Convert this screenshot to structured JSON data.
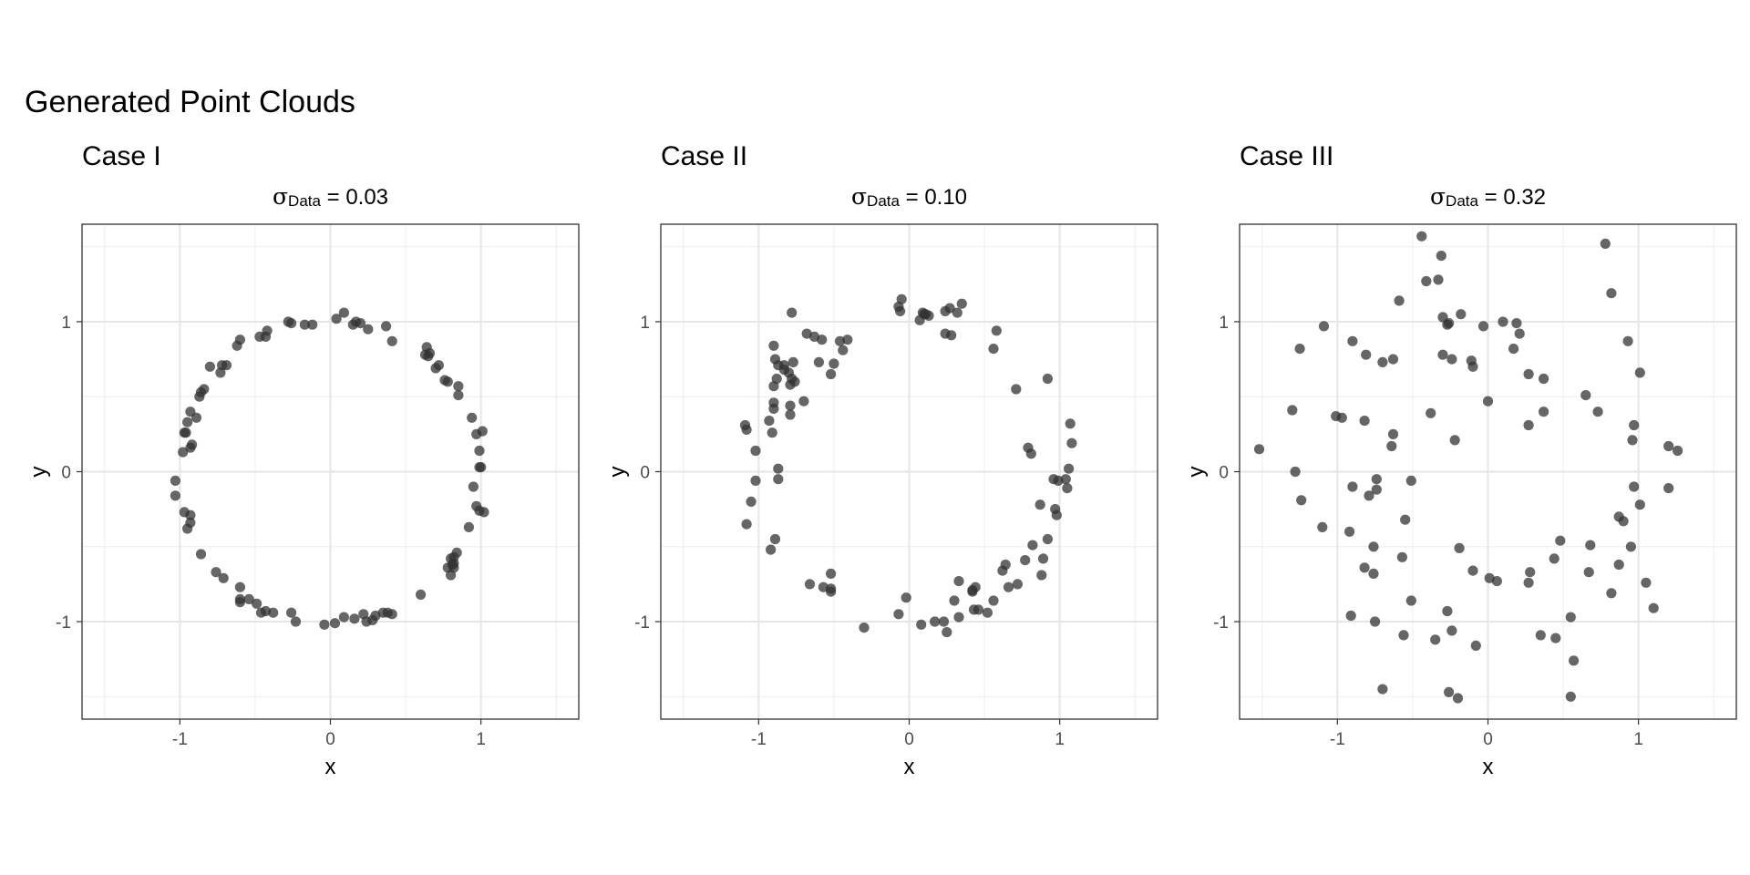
{
  "title": "Generated Point Clouds",
  "chart_data": [
    {
      "type": "scatter",
      "caption": "Case I",
      "subtitle_symbol": "σ",
      "subtitle_subscript": "Data",
      "subtitle_value": " = 0.03",
      "xlabel": "x",
      "ylabel": "y",
      "xlim": [
        -1.65,
        1.65
      ],
      "ylim": [
        -1.65,
        1.65
      ],
      "ticks": [
        -1,
        0,
        1
      ],
      "tick_labels": [
        "-1",
        "0",
        "1"
      ],
      "grid": true,
      "point_color": "#333333",
      "points": [
        [
          -0.28,
          1.0
        ],
        [
          -0.26,
          0.99
        ],
        [
          -0.17,
          0.98
        ],
        [
          -0.12,
          0.98
        ],
        [
          0.09,
          1.06
        ],
        [
          0.04,
          1.02
        ],
        [
          0.17,
          1.0
        ],
        [
          0.15,
          0.98
        ],
        [
          0.2,
          0.99
        ],
        [
          0.25,
          0.95
        ],
        [
          0.37,
          0.97
        ],
        [
          0.41,
          0.87
        ],
        [
          -0.42,
          0.94
        ],
        [
          -0.47,
          0.9
        ],
        [
          -0.43,
          0.9
        ],
        [
          -0.6,
          0.88
        ],
        [
          -0.62,
          0.84
        ],
        [
          -0.69,
          0.71
        ],
        [
          -0.72,
          0.71
        ],
        [
          -0.8,
          0.7
        ],
        [
          -0.73,
          0.66
        ],
        [
          -0.84,
          0.55
        ],
        [
          -0.87,
          0.5
        ],
        [
          -0.86,
          0.53
        ],
        [
          -0.89,
          0.36
        ],
        [
          -0.93,
          0.4
        ],
        [
          -0.95,
          0.33
        ],
        [
          -0.96,
          0.26
        ],
        [
          -0.97,
          0.26
        ],
        [
          -0.92,
          0.18
        ],
        [
          -0.93,
          0.16
        ],
        [
          -0.98,
          0.13
        ],
        [
          -1.03,
          -0.06
        ],
        [
          -1.03,
          -0.16
        ],
        [
          -0.97,
          -0.27
        ],
        [
          -0.93,
          -0.29
        ],
        [
          -0.95,
          -0.38
        ],
        [
          -0.93,
          -0.34
        ],
        [
          -0.86,
          -0.55
        ],
        [
          -0.76,
          -0.67
        ],
        [
          -0.71,
          -0.71
        ],
        [
          -0.6,
          -0.77
        ],
        [
          -0.6,
          -0.85
        ],
        [
          -0.6,
          -0.87
        ],
        [
          -0.54,
          -0.85
        ],
        [
          -0.49,
          -0.88
        ],
        [
          -0.46,
          -0.94
        ],
        [
          -0.43,
          -0.93
        ],
        [
          -0.38,
          -0.94
        ],
        [
          -0.26,
          -0.94
        ],
        [
          -0.23,
          -1.0
        ],
        [
          -0.04,
          -1.02
        ],
        [
          0.03,
          -1.01
        ],
        [
          0.09,
          -0.97
        ],
        [
          0.16,
          -0.98
        ],
        [
          0.22,
          -0.95
        ],
        [
          0.24,
          -1.0
        ],
        [
          0.28,
          -0.99
        ],
        [
          0.3,
          -0.96
        ],
        [
          0.35,
          -0.94
        ],
        [
          0.38,
          -0.94
        ],
        [
          0.41,
          -0.95
        ],
        [
          0.6,
          -0.82
        ],
        [
          0.78,
          -0.64
        ],
        [
          0.8,
          -0.69
        ],
        [
          0.8,
          -0.58
        ],
        [
          0.81,
          -0.62
        ],
        [
          0.82,
          -0.57
        ],
        [
          0.82,
          -0.61
        ],
        [
          0.84,
          -0.54
        ],
        [
          0.82,
          -0.64
        ],
        [
          0.92,
          -0.37
        ],
        [
          0.97,
          -0.23
        ],
        [
          0.99,
          -0.26
        ],
        [
          1.02,
          -0.27
        ],
        [
          0.95,
          -0.1
        ],
        [
          0.99,
          0.03
        ],
        [
          1.0,
          0.03
        ],
        [
          0.99,
          0.14
        ],
        [
          0.97,
          0.25
        ],
        [
          1.01,
          0.27
        ],
        [
          0.94,
          0.36
        ],
        [
          0.85,
          0.51
        ],
        [
          0.85,
          0.57
        ],
        [
          0.78,
          0.6
        ],
        [
          0.76,
          0.61
        ],
        [
          0.72,
          0.71
        ],
        [
          0.7,
          0.69
        ],
        [
          0.64,
          0.83
        ],
        [
          0.63,
          0.78
        ],
        [
          0.65,
          0.77
        ],
        [
          0.66,
          0.79
        ]
      ]
    },
    {
      "type": "scatter",
      "caption": "Case II",
      "subtitle_symbol": "σ",
      "subtitle_subscript": "Data",
      "subtitle_value": " = 0.10",
      "xlabel": "x",
      "ylabel": "y",
      "xlim": [
        -1.65,
        1.65
      ],
      "ylim": [
        -1.65,
        1.65
      ],
      "ticks": [
        -1,
        0,
        1
      ],
      "tick_labels": [
        "-1",
        "0",
        "1"
      ],
      "grid": true,
      "point_color": "#333333",
      "points": [
        [
          -0.07,
          1.1
        ],
        [
          -0.05,
          1.15
        ],
        [
          -0.06,
          1.07
        ],
        [
          0.09,
          1.06
        ],
        [
          0.1,
          1.05
        ],
        [
          0.11,
          1.05
        ],
        [
          0.07,
          1.01
        ],
        [
          0.13,
          1.04
        ],
        [
          0.24,
          1.07
        ],
        [
          0.27,
          1.09
        ],
        [
          0.32,
          1.06
        ],
        [
          0.35,
          1.12
        ],
        [
          0.24,
          0.92
        ],
        [
          0.28,
          0.91
        ],
        [
          0.56,
          0.82
        ],
        [
          0.58,
          0.94
        ],
        [
          -0.78,
          1.06
        ],
        [
          -0.68,
          0.92
        ],
        [
          -0.63,
          0.9
        ],
        [
          -0.58,
          0.88
        ],
        [
          -0.46,
          0.87
        ],
        [
          -0.41,
          0.88
        ],
        [
          -0.44,
          0.81
        ],
        [
          -0.5,
          0.72
        ],
        [
          -0.52,
          0.65
        ],
        [
          -0.6,
          0.73
        ],
        [
          -0.7,
          0.47
        ],
        [
          -0.76,
          0.6
        ],
        [
          -0.78,
          0.62
        ],
        [
          -0.79,
          0.58
        ],
        [
          -0.77,
          0.73
        ],
        [
          -0.8,
          0.66
        ],
        [
          -0.83,
          0.71
        ],
        [
          -0.83,
          0.68
        ],
        [
          -0.87,
          0.71
        ],
        [
          -0.89,
          0.75
        ],
        [
          -0.9,
          0.84
        ],
        [
          -0.88,
          0.62
        ],
        [
          -0.9,
          0.57
        ],
        [
          -0.9,
          0.46
        ],
        [
          -0.9,
          0.42
        ],
        [
          -0.93,
          0.34
        ],
        [
          -0.91,
          0.26
        ],
        [
          -1.02,
          0.14
        ],
        [
          -1.09,
          0.31
        ],
        [
          -1.08,
          0.28
        ],
        [
          -1.02,
          -0.06
        ],
        [
          -1.05,
          -0.2
        ],
        [
          -1.08,
          -0.35
        ],
        [
          -0.89,
          -0.45
        ],
        [
          -0.92,
          -0.52
        ],
        [
          -0.87,
          0.02
        ],
        [
          -0.87,
          -0.05
        ],
        [
          -0.79,
          0.44
        ],
        [
          -0.79,
          0.38
        ],
        [
          -0.66,
          -0.75
        ],
        [
          -0.57,
          -0.77
        ],
        [
          -0.52,
          -0.8
        ],
        [
          -0.52,
          -0.68
        ],
        [
          -0.52,
          -0.78
        ],
        [
          -0.3,
          -1.04
        ],
        [
          -0.07,
          -0.95
        ],
        [
          -0.02,
          -0.84
        ],
        [
          0.08,
          -1.02
        ],
        [
          0.17,
          -1.0
        ],
        [
          0.23,
          -1.0
        ],
        [
          0.25,
          -1.07
        ],
        [
          0.3,
          -0.86
        ],
        [
          0.33,
          -0.97
        ],
        [
          0.33,
          -0.73
        ],
        [
          0.42,
          -0.79
        ],
        [
          0.44,
          -0.77
        ],
        [
          0.42,
          -0.8
        ],
        [
          0.43,
          -0.92
        ],
        [
          0.46,
          -0.92
        ],
        [
          0.52,
          -0.94
        ],
        [
          0.56,
          -0.86
        ],
        [
          0.64,
          -0.62
        ],
        [
          0.66,
          -0.77
        ],
        [
          0.62,
          -0.66
        ],
        [
          0.72,
          -0.75
        ],
        [
          0.77,
          -0.59
        ],
        [
          0.82,
          -0.49
        ],
        [
          0.88,
          -0.69
        ],
        [
          0.89,
          -0.58
        ],
        [
          0.92,
          -0.45
        ],
        [
          0.87,
          -0.22
        ],
        [
          0.97,
          -0.25
        ],
        [
          0.98,
          -0.29
        ],
        [
          0.96,
          -0.05
        ],
        [
          0.99,
          -0.06
        ],
        [
          1.04,
          -0.05
        ],
        [
          1.05,
          -0.11
        ],
        [
          1.06,
          0.02
        ],
        [
          1.08,
          0.19
        ],
        [
          1.07,
          0.32
        ],
        [
          0.79,
          0.16
        ],
        [
          0.81,
          0.12
        ],
        [
          0.71,
          0.55
        ],
        [
          0.92,
          0.62
        ]
      ]
    },
    {
      "type": "scatter",
      "caption": "Case III",
      "subtitle_symbol": "σ",
      "subtitle_subscript": "Data",
      "subtitle_value": " = 0.32",
      "xlabel": "x",
      "ylabel": "y",
      "xlim": [
        -1.65,
        1.65
      ],
      "ylim": [
        -1.65,
        1.65
      ],
      "ticks": [
        -1,
        0,
        1
      ],
      "tick_labels": [
        "-1",
        "0",
        "1"
      ],
      "grid": true,
      "point_color": "#333333",
      "points": [
        [
          -0.44,
          1.57
        ],
        [
          -0.41,
          1.27
        ],
        [
          -0.33,
          1.28
        ],
        [
          -0.31,
          1.44
        ],
        [
          -0.59,
          1.14
        ],
        [
          -0.26,
          0.99
        ],
        [
          -0.27,
          0.98
        ],
        [
          -0.18,
          1.05
        ],
        [
          -0.3,
          0.78
        ],
        [
          -0.24,
          0.75
        ],
        [
          -0.3,
          1.03
        ],
        [
          -0.11,
          0.74
        ],
        [
          -0.1,
          0.7
        ],
        [
          -0.03,
          0.97
        ],
        [
          0.0,
          0.47
        ],
        [
          0.1,
          1.0
        ],
        [
          0.19,
          0.99
        ],
        [
          0.21,
          0.92
        ],
        [
          0.17,
          0.82
        ],
        [
          0.27,
          0.65
        ],
        [
          0.37,
          0.62
        ],
        [
          0.37,
          0.4
        ],
        [
          0.27,
          0.31
        ],
        [
          -0.22,
          0.21
        ],
        [
          -0.63,
          0.75
        ],
        [
          -0.7,
          0.73
        ],
        [
          -0.81,
          0.78
        ],
        [
          -0.9,
          0.87
        ],
        [
          -1.09,
          0.97
        ],
        [
          -1.25,
          0.82
        ],
        [
          -1.52,
          0.15
        ],
        [
          -1.3,
          0.41
        ],
        [
          -1.01,
          0.37
        ],
        [
          -0.97,
          0.36
        ],
        [
          -0.82,
          0.34
        ],
        [
          -0.63,
          0.25
        ],
        [
          -0.64,
          0.17
        ],
        [
          -0.38,
          0.39
        ],
        [
          -1.28,
          0.0
        ],
        [
          -1.24,
          -0.19
        ],
        [
          -1.1,
          -0.37
        ],
        [
          -0.9,
          -0.1
        ],
        [
          -0.92,
          -0.4
        ],
        [
          -0.79,
          -0.16
        ],
        [
          -0.74,
          -0.05
        ],
        [
          -0.74,
          -0.12
        ],
        [
          -0.76,
          -0.5
        ],
        [
          -0.82,
          -0.64
        ],
        [
          -0.76,
          -0.68
        ],
        [
          -0.55,
          -0.32
        ],
        [
          -0.57,
          -0.57
        ],
        [
          -0.51,
          -0.06
        ],
        [
          -0.51,
          -0.86
        ],
        [
          -0.91,
          -0.96
        ],
        [
          -0.75,
          -1.0
        ],
        [
          -0.7,
          -1.45
        ],
        [
          -0.56,
          -1.09
        ],
        [
          -0.35,
          -1.12
        ],
        [
          -0.27,
          -0.93
        ],
        [
          -0.24,
          -1.06
        ],
        [
          -0.26,
          -1.47
        ],
        [
          -0.2,
          -1.51
        ],
        [
          -0.19,
          -0.51
        ],
        [
          -0.1,
          -0.66
        ],
        [
          -0.08,
          -1.16
        ],
        [
          0.01,
          -0.71
        ],
        [
          0.06,
          -0.73
        ],
        [
          0.28,
          -0.67
        ],
        [
          0.27,
          -0.74
        ],
        [
          0.35,
          -1.09
        ],
        [
          0.45,
          -1.11
        ],
        [
          0.44,
          -0.58
        ],
        [
          0.48,
          -0.46
        ],
        [
          0.55,
          -0.97
        ],
        [
          0.57,
          -1.26
        ],
        [
          0.55,
          -1.5
        ],
        [
          0.67,
          -0.67
        ],
        [
          0.68,
          -0.49
        ],
        [
          0.82,
          -0.81
        ],
        [
          0.87,
          -0.62
        ],
        [
          0.87,
          -0.3
        ],
        [
          0.9,
          -0.33
        ],
        [
          0.95,
          -0.5
        ],
        [
          0.97,
          -0.1
        ],
        [
          1.01,
          -0.22
        ],
        [
          1.05,
          -0.74
        ],
        [
          1.1,
          -0.91
        ],
        [
          1.2,
          -0.11
        ],
        [
          1.2,
          0.17
        ],
        [
          1.26,
          0.14
        ],
        [
          0.96,
          0.21
        ],
        [
          0.97,
          0.31
        ],
        [
          0.93,
          0.87
        ],
        [
          1.01,
          0.66
        ],
        [
          0.78,
          1.52
        ],
        [
          0.82,
          1.19
        ],
        [
          0.73,
          0.4
        ],
        [
          0.65,
          0.51
        ]
      ]
    }
  ]
}
